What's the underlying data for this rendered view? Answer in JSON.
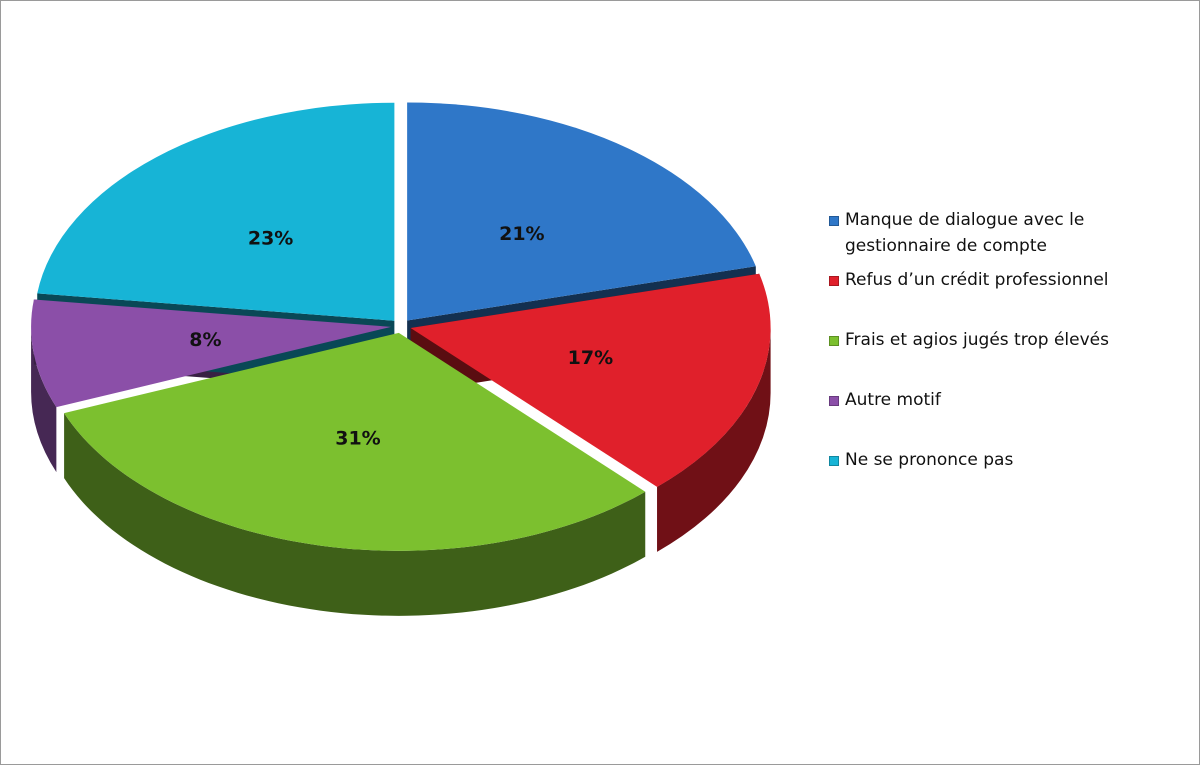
{
  "chart_data": {
    "type": "pie3d",
    "categories": [
      "Manque de dialogue avec le gestionnaire de compte",
      "Refus d’un crédit professionnel",
      "Frais et agios jugés trop élevés",
      "Autre motif",
      "Ne se prononce pas"
    ],
    "values": [
      21,
      17,
      31,
      8,
      23
    ],
    "value_labels": [
      "21%",
      "17%",
      "31%",
      "8%",
      "23%"
    ],
    "colors": [
      "#2f77c8",
      "#e0202b",
      "#7cc02f",
      "#8b4fa8",
      "#17b4d6"
    ],
    "legend": "right"
  }
}
